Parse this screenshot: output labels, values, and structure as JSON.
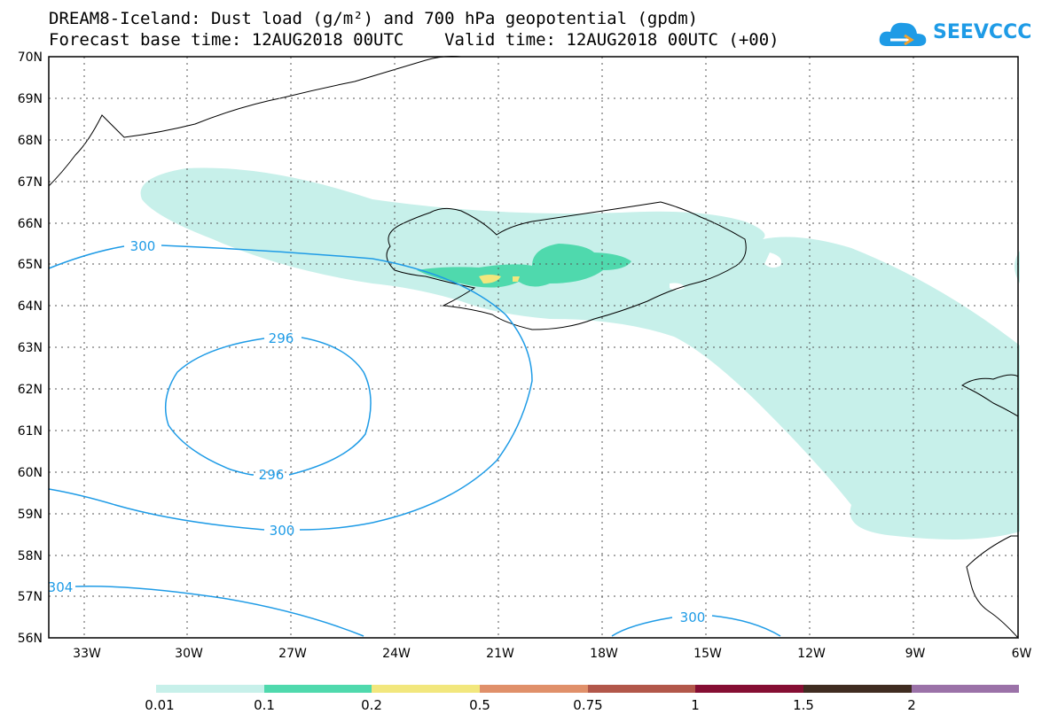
{
  "title": {
    "line1": "DREAM8-Iceland: Dust load (g/m²) and 700 hPa geopotential (gpdm)",
    "line2": "Forecast base time: 12AUG2018 00UTC    Valid time: 12AUG2018 00UTC (+00)"
  },
  "logo": {
    "text": "SEEVCCC",
    "color": "#1e9be6"
  },
  "map": {
    "lat_labels": [
      "70N",
      "69N",
      "68N",
      "67N",
      "66N",
      "65N",
      "64N",
      "63N",
      "62N",
      "61N",
      "60N",
      "59N",
      "58N",
      "57N",
      "56N"
    ],
    "lon_labels": [
      "33W",
      "30W",
      "27W",
      "24W",
      "21W",
      "18W",
      "15W",
      "12W",
      "9W",
      "6W"
    ],
    "contour_labels": [
      {
        "text": "300",
        "value": 300
      },
      {
        "text": "296",
        "value": 296
      },
      {
        "text": "296",
        "value": 296
      },
      {
        "text": "300",
        "value": 300
      },
      {
        "text": "304",
        "value": 304
      },
      {
        "text": "300",
        "value": 300
      }
    ],
    "contour_color": "#1e9be6"
  },
  "colorbar": {
    "labels": [
      "0.01",
      "0.1",
      "0.2",
      "0.5",
      "0.75",
      "1",
      "1.5",
      "2"
    ],
    "colors": [
      "#c7f0ea",
      "#4fd9ad",
      "#f2e77d",
      "#e0906a",
      "#b2574a",
      "#850e33",
      "#402c21",
      "#9b72a8"
    ]
  }
}
